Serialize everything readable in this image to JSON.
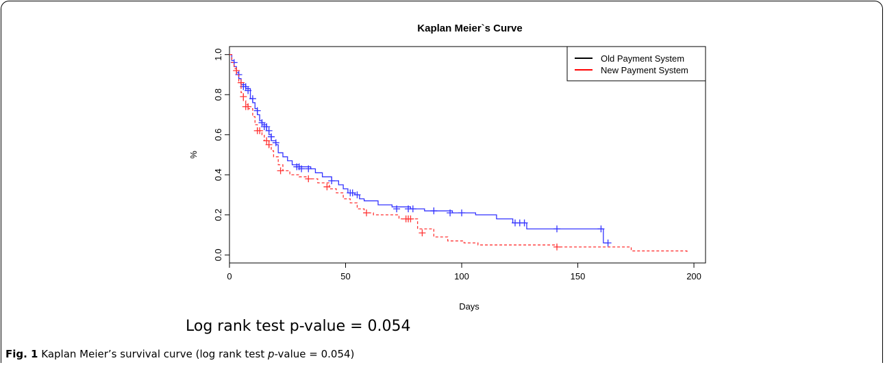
{
  "chart_data": {
    "type": "line",
    "title": "Kaplan Meier`s Curve",
    "xlabel": "Days",
    "ylabel": "%",
    "xlim": [
      0,
      205
    ],
    "ylim": [
      -0.04,
      1.04
    ],
    "xticks": [
      0,
      50,
      100,
      150,
      200
    ],
    "xtick_labels": [
      "0",
      "50",
      "100",
      "150",
      "200"
    ],
    "yticks": [
      0.0,
      0.2,
      0.4,
      0.6,
      0.8,
      1.0
    ],
    "ytick_labels": [
      "0.0",
      "0.2",
      "0.4",
      "0.6",
      "0.8",
      "1.0"
    ],
    "grid": false,
    "legend_position": "top-right",
    "legend": [
      {
        "label": "Old Payment System",
        "color": "#000000"
      },
      {
        "label": "New Payment System",
        "color": "#ff0000"
      }
    ],
    "series": [
      {
        "color": "#3333ff",
        "dashed": false,
        "step": [
          [
            0,
            1.0
          ],
          [
            1,
            0.97
          ],
          [
            2,
            0.94
          ],
          [
            3,
            0.91
          ],
          [
            4,
            0.88
          ],
          [
            5,
            0.85
          ],
          [
            7,
            0.83
          ],
          [
            9,
            0.78
          ],
          [
            10,
            0.76
          ],
          [
            11,
            0.73
          ],
          [
            12,
            0.7
          ],
          [
            13,
            0.67
          ],
          [
            14,
            0.65
          ],
          [
            16,
            0.62
          ],
          [
            17,
            0.6
          ],
          [
            18,
            0.57
          ],
          [
            20,
            0.55
          ],
          [
            21,
            0.51
          ],
          [
            23,
            0.49
          ],
          [
            25,
            0.47
          ],
          [
            27,
            0.45
          ],
          [
            30,
            0.44
          ],
          [
            35,
            0.43
          ],
          [
            37,
            0.41
          ],
          [
            40,
            0.39
          ],
          [
            44,
            0.37
          ],
          [
            47,
            0.35
          ],
          [
            49,
            0.33
          ],
          [
            51,
            0.31
          ],
          [
            54,
            0.3
          ],
          [
            56,
            0.28
          ],
          [
            58,
            0.27
          ],
          [
            64,
            0.25
          ],
          [
            70,
            0.24
          ],
          [
            78,
            0.23
          ],
          [
            84,
            0.22
          ],
          [
            96,
            0.21
          ],
          [
            106,
            0.2
          ],
          [
            115,
            0.18
          ],
          [
            122,
            0.16
          ],
          [
            128,
            0.13
          ],
          [
            161,
            0.06
          ],
          [
            163,
            0.06
          ]
        ],
        "censored": [
          [
            2,
            0.96
          ],
          [
            4,
            0.9
          ],
          [
            6,
            0.84
          ],
          [
            7,
            0.84
          ],
          [
            8,
            0.82
          ],
          [
            10,
            0.78
          ],
          [
            12,
            0.72
          ],
          [
            14,
            0.66
          ],
          [
            15,
            0.64
          ],
          [
            16,
            0.64
          ],
          [
            17,
            0.62
          ],
          [
            18,
            0.59
          ],
          [
            20,
            0.56
          ],
          [
            29,
            0.44
          ],
          [
            30,
            0.44
          ],
          [
            31,
            0.43
          ],
          [
            34,
            0.43
          ],
          [
            44,
            0.37
          ],
          [
            52,
            0.31
          ],
          [
            53,
            0.31
          ],
          [
            55,
            0.3
          ],
          [
            72,
            0.23
          ],
          [
            77,
            0.23
          ],
          [
            79,
            0.23
          ],
          [
            88,
            0.22
          ],
          [
            95,
            0.21
          ],
          [
            100,
            0.21
          ],
          [
            123,
            0.16
          ],
          [
            125,
            0.16
          ],
          [
            127,
            0.16
          ],
          [
            141,
            0.13
          ],
          [
            160,
            0.13
          ],
          [
            163,
            0.06
          ]
        ]
      },
      {
        "color": "#ff3333",
        "dashed": true,
        "step": [
          [
            0,
            1.0
          ],
          [
            1,
            0.96
          ],
          [
            2,
            0.93
          ],
          [
            3,
            0.9
          ],
          [
            4,
            0.86
          ],
          [
            5,
            0.81
          ],
          [
            6,
            0.77
          ],
          [
            7,
            0.75
          ],
          [
            8,
            0.73
          ],
          [
            10,
            0.69
          ],
          [
            11,
            0.65
          ],
          [
            12,
            0.62
          ],
          [
            14,
            0.6
          ],
          [
            15,
            0.57
          ],
          [
            17,
            0.54
          ],
          [
            18,
            0.52
          ],
          [
            19,
            0.49
          ],
          [
            21,
            0.45
          ],
          [
            23,
            0.42
          ],
          [
            26,
            0.4
          ],
          [
            30,
            0.39
          ],
          [
            33,
            0.38
          ],
          [
            38,
            0.36
          ],
          [
            43,
            0.33
          ],
          [
            46,
            0.31
          ],
          [
            49,
            0.28
          ],
          [
            52,
            0.26
          ],
          [
            55,
            0.23
          ],
          [
            58,
            0.21
          ],
          [
            62,
            0.2
          ],
          [
            73,
            0.18
          ],
          [
            81,
            0.13
          ],
          [
            88,
            0.09
          ],
          [
            94,
            0.07
          ],
          [
            101,
            0.06
          ],
          [
            107,
            0.05
          ],
          [
            141,
            0.04
          ],
          [
            173,
            0.02
          ],
          [
            197,
            0.01
          ]
        ],
        "censored": [
          [
            3,
            0.92
          ],
          [
            5,
            0.86
          ],
          [
            6,
            0.79
          ],
          [
            7,
            0.74
          ],
          [
            8,
            0.74
          ],
          [
            12,
            0.62
          ],
          [
            13,
            0.62
          ],
          [
            16,
            0.57
          ],
          [
            17,
            0.55
          ],
          [
            22,
            0.42
          ],
          [
            34,
            0.38
          ],
          [
            42,
            0.34
          ],
          [
            59,
            0.21
          ],
          [
            76,
            0.18
          ],
          [
            77,
            0.18
          ],
          [
            78,
            0.18
          ],
          [
            83,
            0.11
          ],
          [
            141,
            0.04
          ]
        ]
      }
    ]
  },
  "annotation": "Log rank test p-value = 0.054",
  "caption": {
    "prefix": "Fig. 1",
    "text_before": " Kaplan Meier’s survival curve (log rank test ",
    "italic": "p",
    "text_after": "-value = 0.054)"
  }
}
